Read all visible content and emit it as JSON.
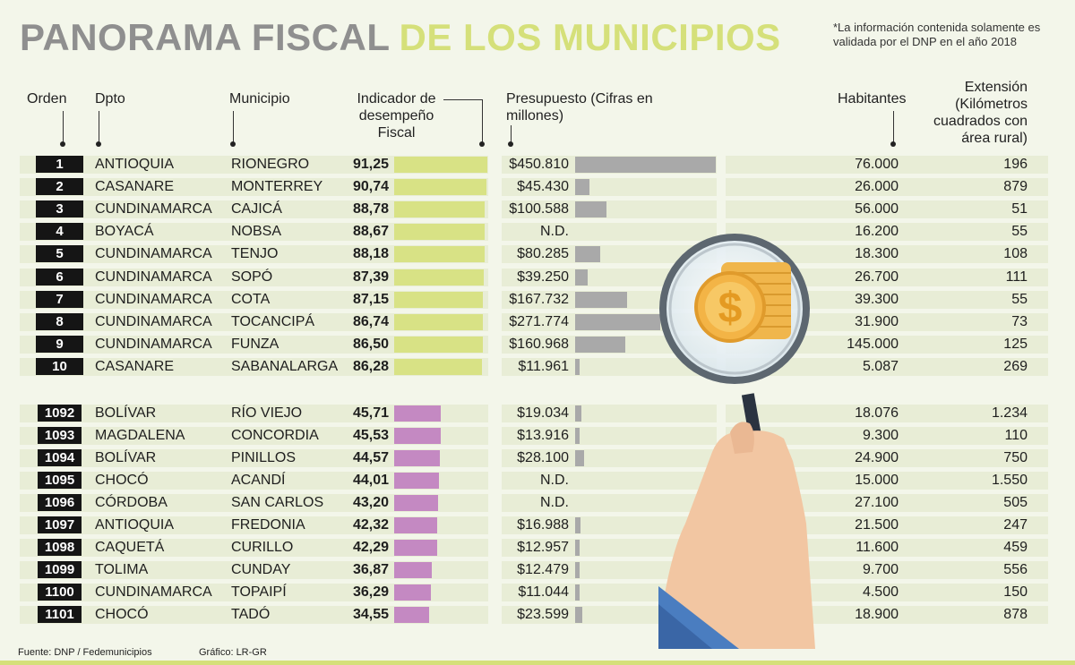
{
  "title": {
    "part1": "PANORAMA FISCAL",
    "part2": "DE LOS MUNICIPIOS"
  },
  "note": "*La información contenida solamente es validada por el DNP en el año 2018",
  "headers": {
    "orden": "Orden",
    "dpto": "Dpto",
    "municipio": "Municipio",
    "indicador": "Indicador de desempeño Fiscal",
    "presupuesto": "Presupuesto (Cifras en millones)",
    "habitantes": "Habitantes",
    "extension": "Extensión (Kilómetros cuadrados con área rural)"
  },
  "footer": {
    "fuente": "Fuente: DNP / Fedemunicipios",
    "grafico": "Gráfico: LR-GR"
  },
  "colors": {
    "top_bar": "#d8e285",
    "bottom_bar": "#c489c2",
    "budget_bar": "#a9a9a9",
    "title_gray": "#8f8f8f",
    "title_green": "#d5e07a",
    "row_bg": "#e8edd6"
  },
  "chart_data": {
    "type": "table",
    "columns": [
      "Orden",
      "Dpto",
      "Municipio",
      "Indicador de desempeño Fiscal",
      "Presupuesto (Cifras en millones)",
      "Habitantes",
      "Extensión (Kilómetros cuadrados con área rural)"
    ],
    "rows": [
      {
        "orden": "1",
        "dpto": "ANTIOQUIA",
        "municipio": "RIONEGRO",
        "indicador": "91,25",
        "indicador_value": 91.25,
        "presupuesto": "$450.810",
        "presupuesto_value": 450810,
        "habitantes": "76.000",
        "extension": "196",
        "group": "top"
      },
      {
        "orden": "2",
        "dpto": "CASANARE",
        "municipio": "MONTERREY",
        "indicador": "90,74",
        "indicador_value": 90.74,
        "presupuesto": "$45.430",
        "presupuesto_value": 45430,
        "habitantes": "26.000",
        "extension": "879",
        "group": "top"
      },
      {
        "orden": "3",
        "dpto": "CUNDINAMARCA",
        "municipio": "CAJICÁ",
        "indicador": "88,78",
        "indicador_value": 88.78,
        "presupuesto": "$100.588",
        "presupuesto_value": 100588,
        "habitantes": "56.000",
        "extension": "51",
        "group": "top"
      },
      {
        "orden": "4",
        "dpto": "BOYACÁ",
        "municipio": "NOBSA",
        "indicador": "88,67",
        "indicador_value": 88.67,
        "presupuesto": "N.D.",
        "presupuesto_value": null,
        "habitantes": "16.200",
        "extension": "55",
        "group": "top"
      },
      {
        "orden": "5",
        "dpto": "CUNDINAMARCA",
        "municipio": "TENJO",
        "indicador": "88,18",
        "indicador_value": 88.18,
        "presupuesto": "$80.285",
        "presupuesto_value": 80285,
        "habitantes": "18.300",
        "extension": "108",
        "group": "top"
      },
      {
        "orden": "6",
        "dpto": "CUNDINAMARCA",
        "municipio": "SOPÓ",
        "indicador": "87,39",
        "indicador_value": 87.39,
        "presupuesto": "$39.250",
        "presupuesto_value": 39250,
        "habitantes": "26.700",
        "extension": "111",
        "group": "top"
      },
      {
        "orden": "7",
        "dpto": "CUNDINAMARCA",
        "municipio": "COTA",
        "indicador": "87,15",
        "indicador_value": 87.15,
        "presupuesto": "$167.732",
        "presupuesto_value": 167732,
        "habitantes": "39.300",
        "extension": "55",
        "group": "top"
      },
      {
        "orden": "8",
        "dpto": "CUNDINAMARCA",
        "municipio": "TOCANCIPÁ",
        "indicador": "86,74",
        "indicador_value": 86.74,
        "presupuesto": "$271.774",
        "presupuesto_value": 271774,
        "habitantes": "31.900",
        "extension": "73",
        "group": "top"
      },
      {
        "orden": "9",
        "dpto": "CUNDINAMARCA",
        "municipio": "FUNZA",
        "indicador": "86,50",
        "indicador_value": 86.5,
        "presupuesto": "$160.968",
        "presupuesto_value": 160968,
        "habitantes": "145.000",
        "extension": "125",
        "group": "top"
      },
      {
        "orden": "10",
        "dpto": "CASANARE",
        "municipio": "SABANALARGA",
        "indicador": "86,28",
        "indicador_value": 86.28,
        "presupuesto": "$11.961",
        "presupuesto_value": 11961,
        "habitantes": "5.087",
        "extension": "269",
        "group": "top"
      },
      {
        "orden": "1092",
        "dpto": "BOLÍVAR",
        "municipio": "RÍO VIEJO",
        "indicador": "45,71",
        "indicador_value": 45.71,
        "presupuesto": "$19.034",
        "presupuesto_value": 19034,
        "habitantes": "18.076",
        "extension": "1.234",
        "group": "bottom"
      },
      {
        "orden": "1093",
        "dpto": "MAGDALENA",
        "municipio": "CONCORDIA",
        "indicador": "45,53",
        "indicador_value": 45.53,
        "presupuesto": "$13.916",
        "presupuesto_value": 13916,
        "habitantes": "9.300",
        "extension": "110",
        "group": "bottom"
      },
      {
        "orden": "1094",
        "dpto": "BOLÍVAR",
        "municipio": "PINILLOS",
        "indicador": "44,57",
        "indicador_value": 44.57,
        "presupuesto": "$28.100",
        "presupuesto_value": 28100,
        "habitantes": "24.900",
        "extension": "750",
        "group": "bottom"
      },
      {
        "orden": "1095",
        "dpto": "CHOCÓ",
        "municipio": "ACANDÍ",
        "indicador": "44,01",
        "indicador_value": 44.01,
        "presupuesto": "N.D.",
        "presupuesto_value": null,
        "habitantes": "15.000",
        "extension": "1.550",
        "group": "bottom"
      },
      {
        "orden": "1096",
        "dpto": "CÓRDOBA",
        "municipio": "SAN CARLOS",
        "indicador": "43,20",
        "indicador_value": 43.2,
        "presupuesto": "N.D.",
        "presupuesto_value": null,
        "habitantes": "27.100",
        "extension": "505",
        "group": "bottom"
      },
      {
        "orden": "1097",
        "dpto": "ANTIOQUIA",
        "municipio": "FREDONIA",
        "indicador": "42,32",
        "indicador_value": 42.32,
        "presupuesto": "$16.988",
        "presupuesto_value": 16988,
        "habitantes": "21.500",
        "extension": "247",
        "group": "bottom"
      },
      {
        "orden": "1098",
        "dpto": "CAQUETÁ",
        "municipio": "CURILLO",
        "indicador": "42,29",
        "indicador_value": 42.29,
        "presupuesto": "$12.957",
        "presupuesto_value": 12957,
        "habitantes": "11.600",
        "extension": "459",
        "group": "bottom"
      },
      {
        "orden": "1099",
        "dpto": "TOLIMA",
        "municipio": "CUNDAY",
        "indicador": "36,87",
        "indicador_value": 36.87,
        "presupuesto": "$12.479",
        "presupuesto_value": 12479,
        "habitantes": "9.700",
        "extension": "556",
        "group": "bottom"
      },
      {
        "orden": "1100",
        "dpto": "CUNDINAMARCA",
        "municipio": "TOPAIPÍ",
        "indicador": "36,29",
        "indicador_value": 36.29,
        "presupuesto": "$11.044",
        "presupuesto_value": 11044,
        "habitantes": "4.500",
        "extension": "150",
        "group": "bottom"
      },
      {
        "orden": "1101",
        "dpto": "CHOCÓ",
        "municipio": "TADÓ",
        "indicador": "34,55",
        "indicador_value": 34.55,
        "presupuesto": "$23.599",
        "presupuesto_value": 23599,
        "habitantes": "18.900",
        "extension": "878",
        "group": "bottom"
      }
    ]
  }
}
